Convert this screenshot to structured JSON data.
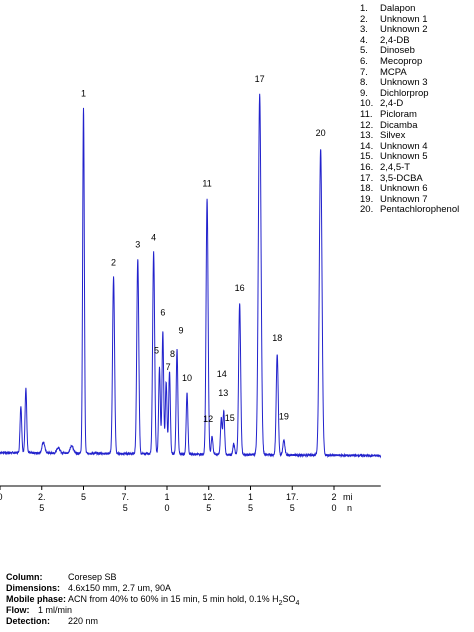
{
  "chart_data": {
    "type": "line",
    "title": "",
    "xlabel": "min",
    "ylabel": "",
    "xlim": [
      0,
      22.8
    ],
    "ylim": [
      0,
      100
    ],
    "grid": false,
    "legend": "top-right, numbered list",
    "line_color": "#2222cc",
    "x_ticks": [
      {
        "value": 0,
        "line1": "0",
        "line2": ""
      },
      {
        "value": 2.5,
        "line1": "2.",
        "line2": "5"
      },
      {
        "value": 5,
        "line1": "5",
        "line2": ""
      },
      {
        "value": 7.5,
        "line1": "7.",
        "line2": "5"
      },
      {
        "value": 10,
        "line1": "1",
        "line2": "0"
      },
      {
        "value": 12.5,
        "line1": "12.",
        "line2": "5"
      },
      {
        "value": 15,
        "line1": "1",
        "line2": "5"
      },
      {
        "value": 17.5,
        "line1": "17.",
        "line2": "5"
      },
      {
        "value": 20,
        "line1": "2",
        "line2": "0"
      }
    ],
    "x_unit_line1": "mi",
    "x_unit_line2": "n",
    "baseline": 1.5,
    "minor_peaks": [
      {
        "x": 1.25,
        "height": 13,
        "width": 0.05
      },
      {
        "x": 1.55,
        "height": 18,
        "width": 0.05
      },
      {
        "x": 2.6,
        "height": 3,
        "width": 0.08
      },
      {
        "x": 3.5,
        "height": 1.5,
        "width": 0.1
      },
      {
        "x": 4.3,
        "height": 2,
        "width": 0.1
      }
    ],
    "peaks": [
      {
        "id": "1",
        "x": 5.0,
        "height": 96,
        "width": 0.05
      },
      {
        "id": "2",
        "x": 6.8,
        "height": 49,
        "width": 0.06
      },
      {
        "id": "3",
        "x": 8.25,
        "height": 54,
        "width": 0.06
      },
      {
        "id": "4",
        "x": 9.2,
        "height": 56,
        "width": 0.06
      },
      {
        "id": "5",
        "x": 9.55,
        "height": 24,
        "width": 0.05
      },
      {
        "id": "6",
        "x": 9.75,
        "height": 34,
        "width": 0.05
      },
      {
        "id": "7",
        "x": 9.95,
        "height": 20,
        "width": 0.05
      },
      {
        "id": "8",
        "x": 10.15,
        "height": 23,
        "width": 0.05
      },
      {
        "id": "9",
        "x": 10.6,
        "height": 29,
        "width": 0.05
      },
      {
        "id": "10",
        "x": 11.2,
        "height": 17,
        "width": 0.05
      },
      {
        "id": "11",
        "x": 12.4,
        "height": 71,
        "width": 0.06
      },
      {
        "id": "12",
        "x": 12.7,
        "height": 5,
        "width": 0.05
      },
      {
        "id": "13",
        "x": 13.25,
        "height": 10,
        "width": 0.05
      },
      {
        "id": "14",
        "x": 13.4,
        "height": 12,
        "width": 0.05
      },
      {
        "id": "15",
        "x": 14.0,
        "height": 3,
        "width": 0.05
      },
      {
        "id": "16",
        "x": 14.35,
        "height": 42,
        "width": 0.06
      },
      {
        "id": "17",
        "x": 15.55,
        "height": 100,
        "width": 0.08
      },
      {
        "id": "18",
        "x": 16.6,
        "height": 28,
        "width": 0.06
      },
      {
        "id": "19",
        "x": 17.0,
        "height": 4,
        "width": 0.06
      },
      {
        "id": "20",
        "x": 19.2,
        "height": 85,
        "width": 0.08
      }
    ],
    "legend_entries": [
      {
        "num": "1.",
        "name": "Dalapon"
      },
      {
        "num": "2.",
        "name": "Unknown 1"
      },
      {
        "num": "3.",
        "name": "Unknown 2"
      },
      {
        "num": "4.",
        "name": "2,4-DB"
      },
      {
        "num": "5.",
        "name": "Dinoseb"
      },
      {
        "num": "6.",
        "name": "Mecoprop"
      },
      {
        "num": "7.",
        "name": "MCPA"
      },
      {
        "num": "8.",
        "name": "Unknown 3"
      },
      {
        "num": "9.",
        "name": "Dichlorprop"
      },
      {
        "num": "10.",
        "name": "2,4-D"
      },
      {
        "num": "11.",
        "name": "Picloram"
      },
      {
        "num": "12.",
        "name": "Dicamba"
      },
      {
        "num": "13.",
        "name": "Silvex"
      },
      {
        "num": "14.",
        "name": "Unknown 4"
      },
      {
        "num": "15.",
        "name": "Unknown 5"
      },
      {
        "num": "16.",
        "name": "2,4,5-T"
      },
      {
        "num": "17.",
        "name": "3,5-DCBA"
      },
      {
        "num": "18.",
        "name": "Unknown 6"
      },
      {
        "num": "19.",
        "name": "Unknown 7"
      },
      {
        "num": "20.",
        "name": "Pentachlorophenol"
      }
    ]
  },
  "conditions": {
    "column_label": "Column:",
    "column_value": "Coresep SB",
    "dimensions_label": "Dimensions:",
    "dimensions_value": "4.6x150 mm, 2.7 um, 90A",
    "mobile_phase_label": "Mobile phase:",
    "mobile_phase_value": "ACN from 40% to 60% in 15 min, 5 min hold, 0.1% H",
    "mobile_phase_sub": "2",
    "mobile_phase_suffix": "SO",
    "mobile_phase_sub2": "4",
    "flow_label": "Flow:",
    "flow_value": "1 ml/min",
    "detection_label": "Detection:",
    "detection_value": "220 nm"
  }
}
